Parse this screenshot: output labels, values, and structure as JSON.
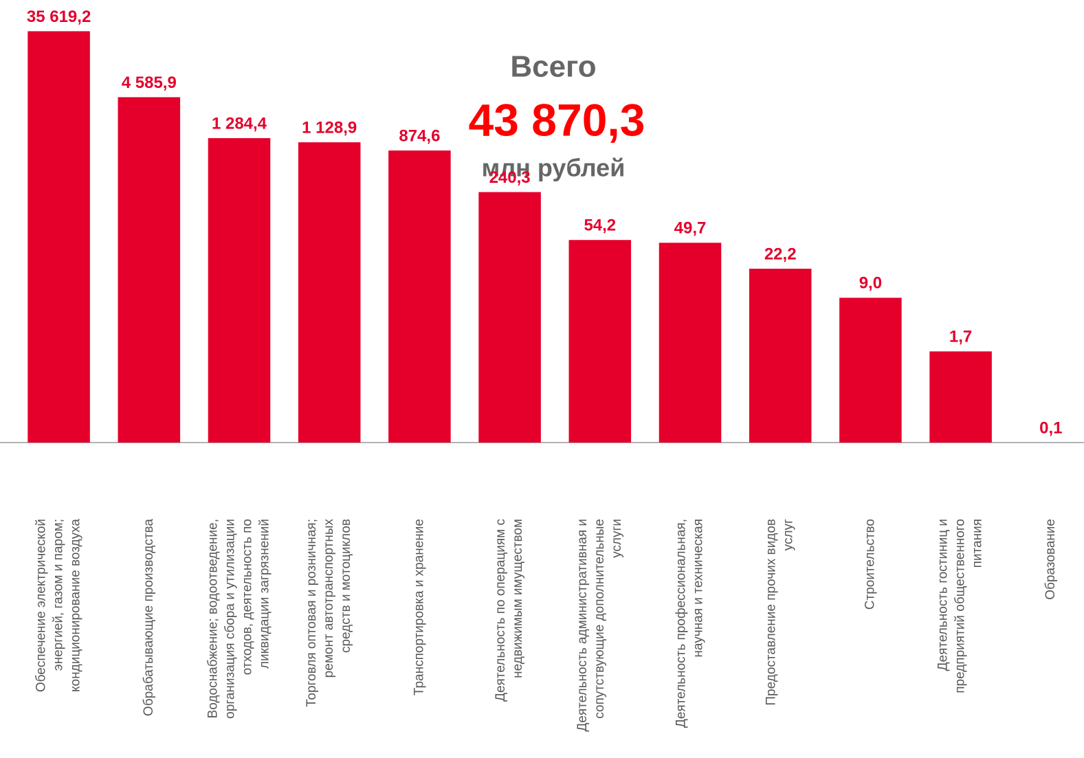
{
  "chart_data": {
    "type": "bar",
    "annotations": {
      "total_title": "Всего",
      "total_value": "43 870,3",
      "total_unit": "млн рублей"
    },
    "categories": [
      "Обеспечение электрической\nэнергией, газом и паром;\nкондиционирование воздуха",
      "Обрабатывающие производства",
      "Водоснабжение; водоотведение,\nорганизация сбора и утилизации\nотходов, деятельность по\nликвидации загрязнений",
      "Торговля оптовая и розничная;\nремонт автотранспортных\nсредств и мотоциклов",
      "Транспортировка и хранение",
      "Деятельность по операциям с\nнедвижимым имуществом",
      "Деятельность административная и\nсопутствующие дополнительные\nуслуги",
      "Деятельность профессиональная,\nнаучная и техническая",
      "Предоставление прочих видов\nуслуг",
      "Строительство",
      "Деятельность гостиниц и\nпредприятий общественного\nпитания",
      "Образование"
    ],
    "values": [
      35619.2,
      4585.9,
      1284.4,
      1128.9,
      874.6,
      240.3,
      54.2,
      49.7,
      22.2,
      9.0,
      1.7,
      0.1
    ],
    "value_labels": [
      "35 619,2",
      "4 585,9",
      "1 284,4",
      "1 128,9",
      "874,6",
      "240,3",
      "54,2",
      "49,7",
      "22,2",
      "9,0",
      "1,7",
      "0,1"
    ],
    "color": "#e4002b",
    "log_scale": true,
    "ylim": [
      0.1,
      40000
    ]
  }
}
